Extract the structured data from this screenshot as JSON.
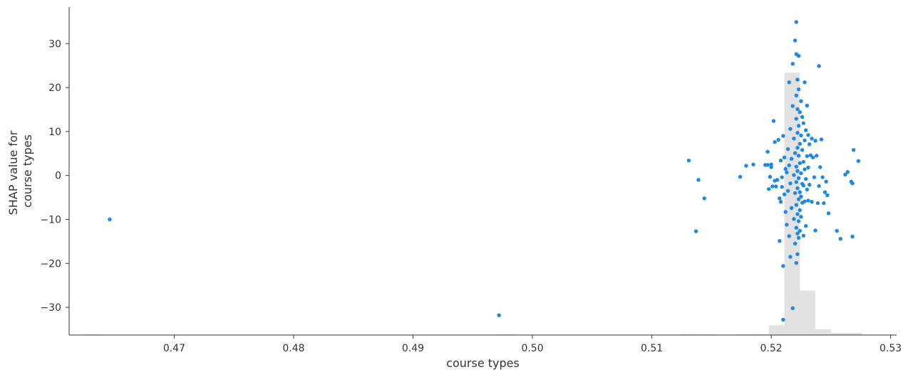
{
  "chart_data": {
    "type": "scatter",
    "title": "",
    "xlabel": "course types",
    "ylabel_lines": [
      "SHAP value for",
      "course types"
    ],
    "xlim": [
      0.4612,
      0.5305
    ],
    "ylim": [
      -36.3,
      38.3
    ],
    "xticks": [
      0.47,
      0.48,
      0.49,
      0.5,
      0.51,
      0.52,
      0.53
    ],
    "xtick_labels": [
      "0.47",
      "0.48",
      "0.49",
      "0.50",
      "0.51",
      "0.52",
      "0.53"
    ],
    "yticks": [
      30,
      20,
      10,
      0,
      -10,
      -20,
      -30
    ],
    "ytick_labels": [
      "30",
      "20",
      "10",
      "0",
      "−10",
      "−20",
      "−30"
    ],
    "grid": false,
    "legend": "none",
    "point_color": "#1E88E5",
    "histogram_color": "#e2e2e2",
    "histogram": [
      {
        "x0": 0.4625,
        "x1": 0.464,
        "height": 0.1
      },
      {
        "x0": 0.497,
        "x1": 0.4985,
        "height": 0.1
      },
      {
        "x0": 0.5125,
        "x1": 0.514,
        "height": 0.2
      },
      {
        "x0": 0.514,
        "x1": 0.5155,
        "height": 0.1
      },
      {
        "x0": 0.517,
        "x1": 0.5185,
        "height": 0.1
      },
      {
        "x0": 0.5185,
        "x1": 0.5198,
        "height": 0.2
      },
      {
        "x0": 0.5198,
        "x1": 0.5211,
        "height": 2.2
      },
      {
        "x0": 0.5211,
        "x1": 0.5224,
        "height": 59.0
      },
      {
        "x0": 0.5224,
        "x1": 0.5237,
        "height": 10.0
      },
      {
        "x0": 0.5237,
        "x1": 0.525,
        "height": 1.3
      },
      {
        "x0": 0.525,
        "x1": 0.5263,
        "height": 0.5
      },
      {
        "x0": 0.5263,
        "x1": 0.5276,
        "height": 0.5
      }
    ],
    "points": [
      [
        0.4646,
        -10.0
      ],
      [
        0.4972,
        -31.8
      ],
      [
        0.5131,
        3.4
      ],
      [
        0.5137,
        -12.7
      ],
      [
        0.5139,
        -1.0
      ],
      [
        0.5144,
        -5.2
      ],
      [
        0.5174,
        -0.3
      ],
      [
        0.5179,
        2.2
      ],
      [
        0.5185,
        2.5
      ],
      [
        0.5195,
        2.4
      ],
      [
        0.5197,
        2.4
      ],
      [
        0.5197,
        5.4
      ],
      [
        0.5198,
        -3.1
      ],
      [
        0.5199,
        -0.3
      ],
      [
        0.52,
        2.5
      ],
      [
        0.52,
        1.9
      ],
      [
        0.5201,
        -2.5
      ],
      [
        0.5202,
        12.4
      ],
      [
        0.5203,
        7.6
      ],
      [
        0.5203,
        -1.2
      ],
      [
        0.5204,
        -2.5
      ],
      [
        0.5205,
        -1.0
      ],
      [
        0.5206,
        8.1
      ],
      [
        0.5207,
        -5.2
      ],
      [
        0.5207,
        -14.9
      ],
      [
        0.5208,
        3.4
      ],
      [
        0.5208,
        -6.0
      ],
      [
        0.5209,
        -0.4
      ],
      [
        0.5209,
        -2.6
      ],
      [
        0.521,
        9.0
      ],
      [
        0.521,
        -32.8
      ],
      [
        0.521,
        -20.6
      ],
      [
        0.5211,
        4.1
      ],
      [
        0.5211,
        -4.3
      ],
      [
        0.5212,
        1.5
      ],
      [
        0.5212,
        -8.3
      ],
      [
        0.5213,
        0.7
      ],
      [
        0.5213,
        -11.2
      ],
      [
        0.5214,
        6.0
      ],
      [
        0.5214,
        -3.5
      ],
      [
        0.5215,
        21.2
      ],
      [
        0.5215,
        2.3
      ],
      [
        0.5215,
        -13.8
      ],
      [
        0.5216,
        10.6
      ],
      [
        0.5216,
        -1.8
      ],
      [
        0.5216,
        -18.5
      ],
      [
        0.5217,
        3.8
      ],
      [
        0.5217,
        -7.4
      ],
      [
        0.5218,
        25.4
      ],
      [
        0.5218,
        15.8
      ],
      [
        0.5218,
        -30.2
      ],
      [
        0.5219,
        0.1
      ],
      [
        0.5219,
        -9.9
      ],
      [
        0.5219,
        8.4
      ],
      [
        0.522,
        30.7
      ],
      [
        0.522,
        5.1
      ],
      [
        0.522,
        -4.0
      ],
      [
        0.522,
        -15.5
      ],
      [
        0.5221,
        34.9
      ],
      [
        0.5221,
        27.6
      ],
      [
        0.5221,
        18.2
      ],
      [
        0.5221,
        12.9
      ],
      [
        0.5221,
        2.0
      ],
      [
        0.5221,
        -1.5
      ],
      [
        0.5221,
        -6.7
      ],
      [
        0.5221,
        -11.9
      ],
      [
        0.5221,
        -19.9
      ],
      [
        0.5222,
        21.8
      ],
      [
        0.5222,
        15.1
      ],
      [
        0.5222,
        9.7
      ],
      [
        0.5222,
        6.3
      ],
      [
        0.5222,
        1.0
      ],
      [
        0.5222,
        -2.9
      ],
      [
        0.5222,
        -8.8
      ],
      [
        0.5222,
        -13.2
      ],
      [
        0.5222,
        -17.9
      ],
      [
        0.5223,
        27.2
      ],
      [
        0.5223,
        19.6
      ],
      [
        0.5223,
        11.3
      ],
      [
        0.5223,
        4.5
      ],
      [
        0.5223,
        -0.6
      ],
      [
        0.5223,
        -5.4
      ],
      [
        0.5223,
        -10.4
      ],
      [
        0.5223,
        -14.2
      ],
      [
        0.5224,
        14.4
      ],
      [
        0.5224,
        7.2
      ],
      [
        0.5224,
        2.8
      ],
      [
        0.5224,
        -3.8
      ],
      [
        0.5224,
        -7.9
      ],
      [
        0.5224,
        -12.6
      ],
      [
        0.5225,
        16.9
      ],
      [
        0.5225,
        9.1
      ],
      [
        0.5225,
        0.5
      ],
      [
        0.5225,
        -4.8
      ],
      [
        0.5225,
        -9.4
      ],
      [
        0.5226,
        13.3
      ],
      [
        0.5226,
        5.8
      ],
      [
        0.5226,
        -1.9
      ],
      [
        0.5226,
        -6.2
      ],
      [
        0.5227,
        11.9
      ],
      [
        0.5227,
        3.1
      ],
      [
        0.5227,
        -2.3
      ],
      [
        0.5227,
        -13.7
      ],
      [
        0.5228,
        21.2
      ],
      [
        0.5228,
        8.0
      ],
      [
        0.5228,
        1.4
      ],
      [
        0.5228,
        -5.9
      ],
      [
        0.5229,
        10.3
      ],
      [
        0.5229,
        -0.8
      ],
      [
        0.5229,
        -11.5
      ],
      [
        0.523,
        15.9
      ],
      [
        0.523,
        4.4
      ],
      [
        0.523,
        -3.2
      ],
      [
        0.5231,
        9.2
      ],
      [
        0.5231,
        1.8
      ],
      [
        0.5231,
        -5.7
      ],
      [
        0.5232,
        7.1
      ],
      [
        0.5232,
        -2.1
      ],
      [
        0.5233,
        4.6
      ],
      [
        0.5234,
        8.4
      ],
      [
        0.5234,
        -6.0
      ],
      [
        0.5235,
        4.1
      ],
      [
        0.5236,
        -0.4
      ],
      [
        0.5237,
        7.9
      ],
      [
        0.5237,
        -12.5
      ],
      [
        0.5238,
        4.5
      ],
      [
        0.5239,
        -6.3
      ],
      [
        0.524,
        24.9
      ],
      [
        0.524,
        -2.4
      ],
      [
        0.5241,
        1.9
      ],
      [
        0.5242,
        8.2
      ],
      [
        0.5243,
        -0.4
      ],
      [
        0.5244,
        -6.3
      ],
      [
        0.5245,
        -3.8
      ],
      [
        0.5246,
        -1.4
      ],
      [
        0.5247,
        -4.5
      ],
      [
        0.5248,
        -8.6
      ],
      [
        0.5255,
        -12.6
      ],
      [
        0.5258,
        -14.4
      ],
      [
        0.5262,
        0.2
      ],
      [
        0.5264,
        0.8
      ],
      [
        0.5267,
        -1.4
      ],
      [
        0.5268,
        -13.9
      ],
      [
        0.5268,
        -1.8
      ],
      [
        0.5269,
        5.8
      ],
      [
        0.5273,
        3.3
      ]
    ]
  }
}
